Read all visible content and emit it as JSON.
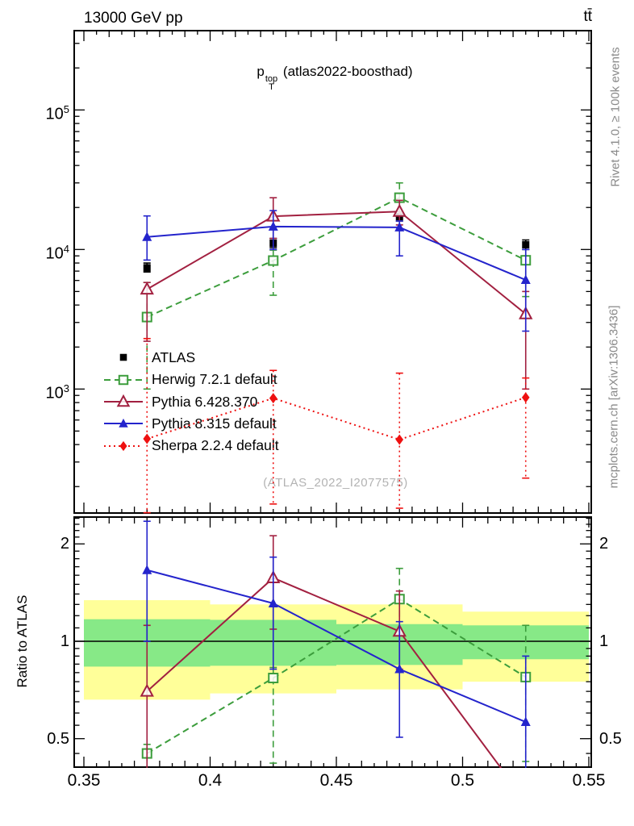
{
  "header": {
    "left": "13000 GeV pp",
    "right": "tt̄"
  },
  "title": {
    "base": "p",
    "sub": "T",
    "sup": "top",
    "rest": "(atlas2022-boosthad)"
  },
  "watermark": "(ATLAS_2022_I2077575)",
  "side_notes": {
    "top": "Rivet 4.1.0, ≥ 100k events",
    "bottom": "mcplots.cern.ch [arXiv:1306.3436]"
  },
  "axes": {
    "x": {
      "tick_values": [
        0.35,
        0.4,
        0.45,
        0.5,
        0.55
      ],
      "tick_labels": [
        "0.35",
        "0.4",
        "0.45",
        "0.5",
        "0.55"
      ]
    },
    "y_main": {
      "log": true,
      "tick_exponents": [
        3,
        4,
        5
      ]
    },
    "y_ratio": {
      "log": true,
      "tick_values": [
        0.5,
        1,
        2
      ],
      "tick_labels": [
        "0.5",
        "1",
        "2"
      ],
      "label": "Ratio to ATLAS"
    }
  },
  "colors": {
    "atlas": "#000000",
    "herwig": "#3c9d3c",
    "pythia6": "#a22040",
    "pythia8": "#2424cc",
    "sherpa": "#ee1111",
    "band_yellow": "#ffff99",
    "band_green": "#87e987",
    "watermark_gray": "#b3b3b3"
  },
  "chart_data": {
    "type": "line",
    "title": "pT top (atlas2022-boosthad)",
    "x_values": [
      0.375,
      0.425,
      0.475,
      0.525
    ],
    "x_range": [
      0.35,
      0.55
    ],
    "main_panel": {
      "ylog": true,
      "ylim": [
        128,
        340000
      ],
      "series": [
        {
          "name": "ATLAS",
          "color": "#000000",
          "marker": "square-filled",
          "line": "none",
          "y": [
            7400,
            11100,
            17200,
            10800
          ],
          "err_lo": [
            6900,
            10300,
            16000,
            10000
          ],
          "err_hi": [
            8000,
            12000,
            18700,
            11700
          ]
        },
        {
          "name": "Herwig 7.2.1 default",
          "color": "#3c9d3c",
          "marker": "square-open",
          "line": "dashed",
          "y": [
            3280,
            8330,
            23500,
            8370
          ],
          "err_lo": [
            1000,
            4700,
            18700,
            4600
          ],
          "err_hi": [
            5800,
            9900,
            30000,
            10000
          ]
        },
        {
          "name": "Pythia 6.428.370",
          "color": "#a22040",
          "marker": "triangle-open",
          "line": "solid",
          "y": [
            5190,
            17300,
            18700,
            3450
          ],
          "err_lo": [
            2200,
            12000,
            15000,
            1000
          ],
          "err_hi": [
            5800,
            23500,
            22500,
            5000
          ]
        },
        {
          "name": "Pythia 8.315 default",
          "color": "#2424cc",
          "marker": "triangle-filled",
          "line": "solid",
          "y": [
            12300,
            14600,
            14400,
            6050
          ],
          "err_lo": [
            8400,
            10000,
            9000,
            2600
          ],
          "err_hi": [
            17400,
            19000,
            16000,
            10000
          ]
        },
        {
          "name": "Sherpa 2.2.4 default",
          "color": "#ee1111",
          "marker": "diamond-filled",
          "line": "dotted",
          "y": [
            440,
            860,
            434,
            870
          ],
          "err_lo": [
            130,
            150,
            140,
            230
          ],
          "err_hi": [
            2300,
            1360,
            1300,
            1200
          ]
        }
      ]
    },
    "ratio_panel": {
      "ylog": true,
      "ylim": [
        0.406,
        2.43
      ],
      "ref_value": 1,
      "band_edges": [
        0.35,
        0.4,
        0.45,
        0.5,
        0.55
      ],
      "yellow_band": [
        [
          0.66,
          1.34
        ],
        [
          0.69,
          1.3
        ],
        [
          0.71,
          1.3
        ],
        [
          0.75,
          1.235
        ]
      ],
      "green_band": [
        [
          0.835,
          1.17
        ],
        [
          0.84,
          1.165
        ],
        [
          0.845,
          1.13
        ],
        [
          0.88,
          1.12
        ]
      ],
      "series": [
        {
          "name": "Herwig 7.2.1 default",
          "y": [
            0.45,
            0.77,
            1.35,
            0.775
          ],
          "err_lo": [
            0.38,
            0.42,
            1.05,
            0.425
          ],
          "err_hi": [
            0.48,
            0.83,
            1.68,
            1.12
          ]
        },
        {
          "name": "Pythia 6.428.370",
          "y": [
            0.7,
            1.57,
            1.073,
            0.32
          ],
          "err_lo": [
            0.3,
            1.09,
            0.82,
            null
          ],
          "err_hi": [
            1.12,
            2.12,
            1.43,
            null
          ]
        },
        {
          "name": "Pythia 8.315 default",
          "y": [
            1.66,
            1.31,
            0.82,
            0.563
          ],
          "err_lo": [
            1.0,
            0.82,
            0.505,
            0.4
          ],
          "err_hi": [
            2.35,
            1.82,
            1.15,
            0.9
          ]
        }
      ]
    }
  }
}
